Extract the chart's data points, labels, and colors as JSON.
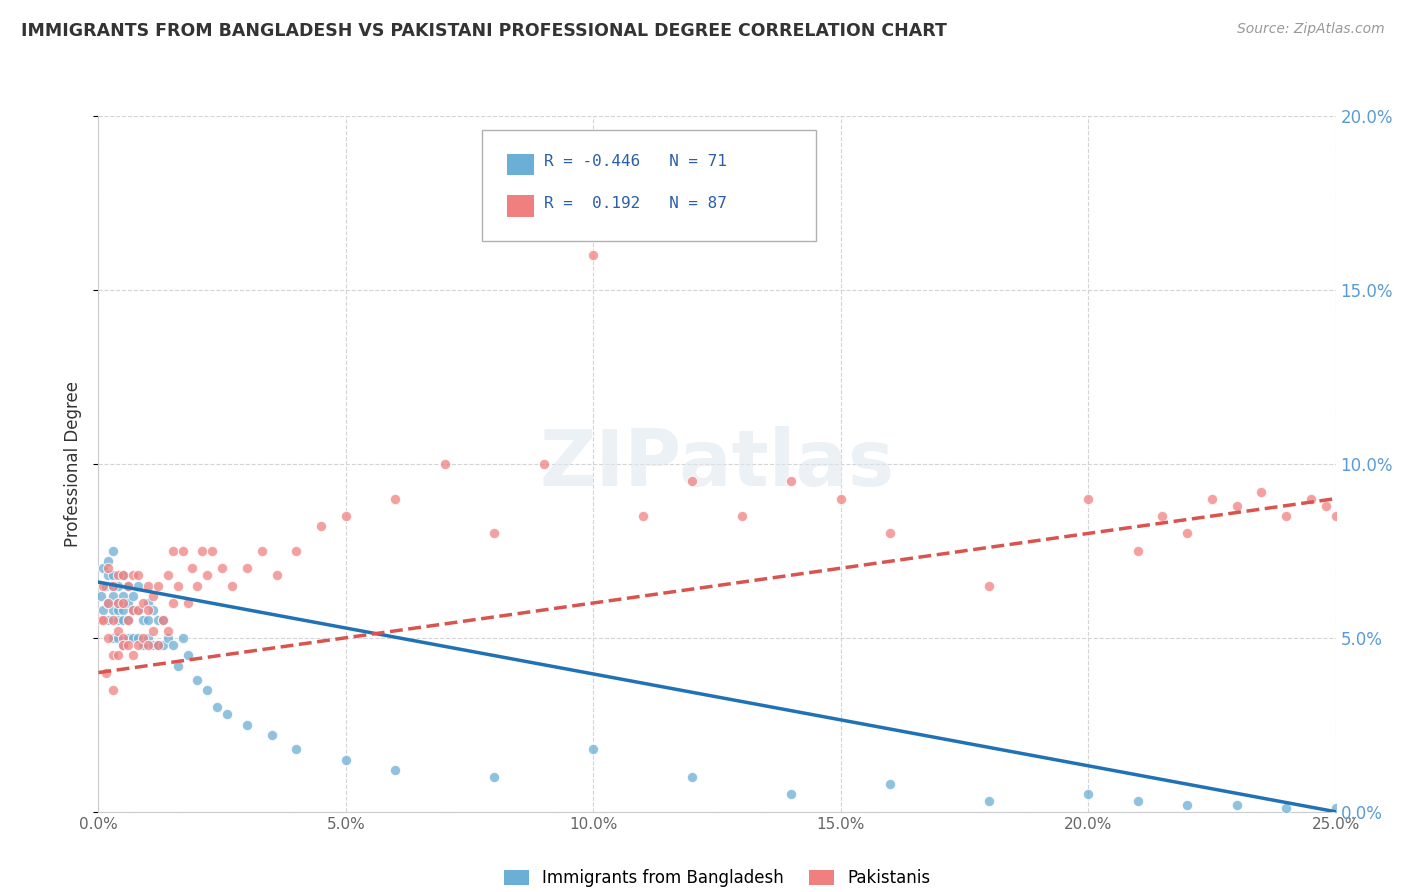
{
  "title": "IMMIGRANTS FROM BANGLADESH VS PAKISTANI PROFESSIONAL DEGREE CORRELATION CHART",
  "source": "Source: ZipAtlas.com",
  "ylabel": "Professional Degree",
  "legend_label_1": "Immigrants from Bangladesh",
  "legend_label_2": "Pakistanis",
  "r1": -0.446,
  "n1": 71,
  "r2": 0.192,
  "n2": 87,
  "color1": "#6baed6",
  "color2": "#f08080",
  "line_color1": "#2171b5",
  "line_color2": "#d9534f",
  "bg_color": "#ffffff",
  "grid_color": "#d0d0d0",
  "xmin": 0.0,
  "xmax": 0.25,
  "ymin": 0.0,
  "ymax": 0.2,
  "title_color": "#333333",
  "right_axis_color": "#5b9bd5",
  "bangladesh_x": [
    0.0005,
    0.001,
    0.001,
    0.0015,
    0.002,
    0.002,
    0.002,
    0.002,
    0.003,
    0.003,
    0.003,
    0.003,
    0.003,
    0.003,
    0.004,
    0.004,
    0.004,
    0.004,
    0.004,
    0.005,
    0.005,
    0.005,
    0.005,
    0.005,
    0.006,
    0.006,
    0.006,
    0.006,
    0.007,
    0.007,
    0.007,
    0.008,
    0.008,
    0.008,
    0.009,
    0.009,
    0.01,
    0.01,
    0.01,
    0.011,
    0.011,
    0.012,
    0.012,
    0.013,
    0.013,
    0.014,
    0.015,
    0.016,
    0.017,
    0.018,
    0.02,
    0.022,
    0.024,
    0.026,
    0.03,
    0.035,
    0.04,
    0.05,
    0.06,
    0.08,
    0.1,
    0.12,
    0.14,
    0.16,
    0.18,
    0.2,
    0.21,
    0.22,
    0.23,
    0.24,
    0.25
  ],
  "bangladesh_y": [
    0.062,
    0.07,
    0.058,
    0.065,
    0.068,
    0.072,
    0.06,
    0.055,
    0.075,
    0.065,
    0.058,
    0.05,
    0.062,
    0.068,
    0.06,
    0.055,
    0.05,
    0.065,
    0.058,
    0.055,
    0.062,
    0.068,
    0.048,
    0.058,
    0.05,
    0.06,
    0.055,
    0.065,
    0.05,
    0.058,
    0.062,
    0.05,
    0.058,
    0.065,
    0.048,
    0.055,
    0.05,
    0.06,
    0.055,
    0.048,
    0.058,
    0.048,
    0.055,
    0.048,
    0.055,
    0.05,
    0.048,
    0.042,
    0.05,
    0.045,
    0.038,
    0.035,
    0.03,
    0.028,
    0.025,
    0.022,
    0.018,
    0.015,
    0.012,
    0.01,
    0.018,
    0.01,
    0.005,
    0.008,
    0.003,
    0.005,
    0.003,
    0.002,
    0.002,
    0.001,
    0.001
  ],
  "pakistani_x": [
    0.0005,
    0.001,
    0.001,
    0.0015,
    0.002,
    0.002,
    0.002,
    0.003,
    0.003,
    0.003,
    0.003,
    0.004,
    0.004,
    0.004,
    0.004,
    0.005,
    0.005,
    0.005,
    0.005,
    0.006,
    0.006,
    0.006,
    0.007,
    0.007,
    0.007,
    0.008,
    0.008,
    0.008,
    0.009,
    0.009,
    0.01,
    0.01,
    0.01,
    0.011,
    0.011,
    0.012,
    0.012,
    0.013,
    0.014,
    0.014,
    0.015,
    0.015,
    0.016,
    0.017,
    0.018,
    0.019,
    0.02,
    0.021,
    0.022,
    0.023,
    0.025,
    0.027,
    0.03,
    0.033,
    0.036,
    0.04,
    0.045,
    0.05,
    0.06,
    0.07,
    0.08,
    0.09,
    0.1,
    0.11,
    0.12,
    0.13,
    0.14,
    0.15,
    0.16,
    0.18,
    0.2,
    0.21,
    0.215,
    0.22,
    0.225,
    0.23,
    0.235,
    0.24,
    0.245,
    0.248,
    0.25,
    0.252,
    0.255,
    0.258,
    0.26,
    0.265,
    0.27
  ],
  "pakistani_y": [
    0.055,
    0.055,
    0.065,
    0.04,
    0.06,
    0.07,
    0.05,
    0.045,
    0.055,
    0.065,
    0.035,
    0.052,
    0.06,
    0.068,
    0.045,
    0.05,
    0.06,
    0.068,
    0.048,
    0.048,
    0.055,
    0.065,
    0.045,
    0.058,
    0.068,
    0.048,
    0.058,
    0.068,
    0.05,
    0.06,
    0.048,
    0.058,
    0.065,
    0.052,
    0.062,
    0.048,
    0.065,
    0.055,
    0.052,
    0.068,
    0.06,
    0.075,
    0.065,
    0.075,
    0.06,
    0.07,
    0.065,
    0.075,
    0.068,
    0.075,
    0.07,
    0.065,
    0.07,
    0.075,
    0.068,
    0.075,
    0.082,
    0.085,
    0.09,
    0.1,
    0.08,
    0.1,
    0.16,
    0.085,
    0.095,
    0.085,
    0.095,
    0.09,
    0.08,
    0.065,
    0.09,
    0.075,
    0.085,
    0.08,
    0.09,
    0.088,
    0.092,
    0.085,
    0.09,
    0.088,
    0.085,
    0.092,
    0.088,
    0.085,
    0.09,
    0.085,
    0.09
  ]
}
